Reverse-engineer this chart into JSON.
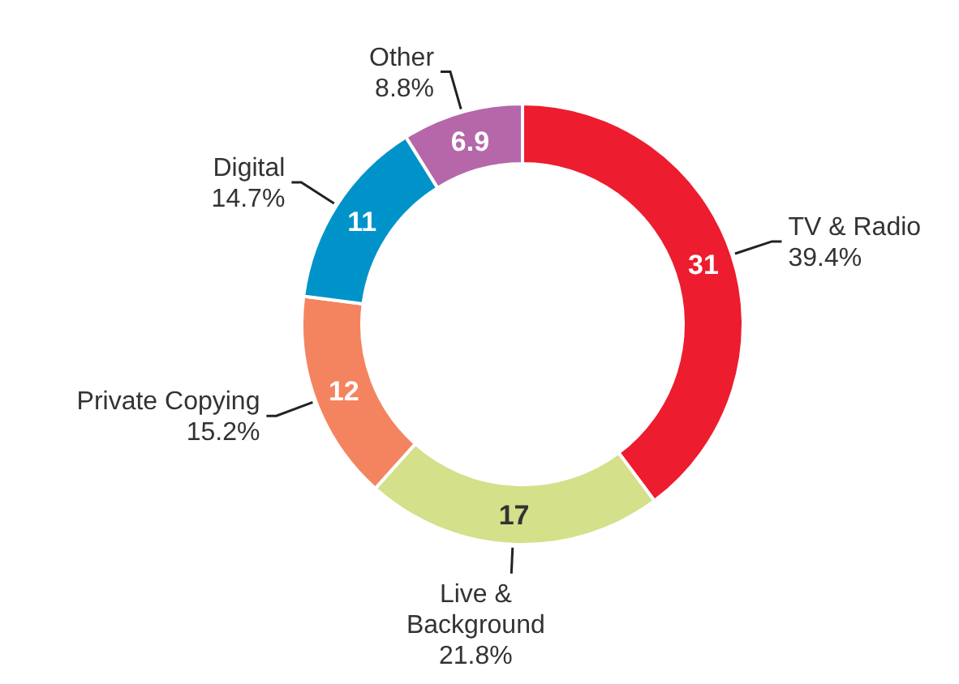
{
  "chart_data": {
    "type": "donut",
    "categories": [
      "TV & Radio",
      "Live & Background",
      "Private Copying",
      "Digital",
      "Other"
    ],
    "values": [
      31,
      17,
      12,
      11,
      6.9
    ],
    "colors": [
      "#ed1c2e",
      "#d4e08a",
      "#f4845f",
      "#0093c9",
      "#b567aa"
    ],
    "data_labels": true,
    "annotations": [
      "39.4%",
      "21.8%",
      "15.2%",
      "14.7%",
      "8.8%"
    ]
  }
}
